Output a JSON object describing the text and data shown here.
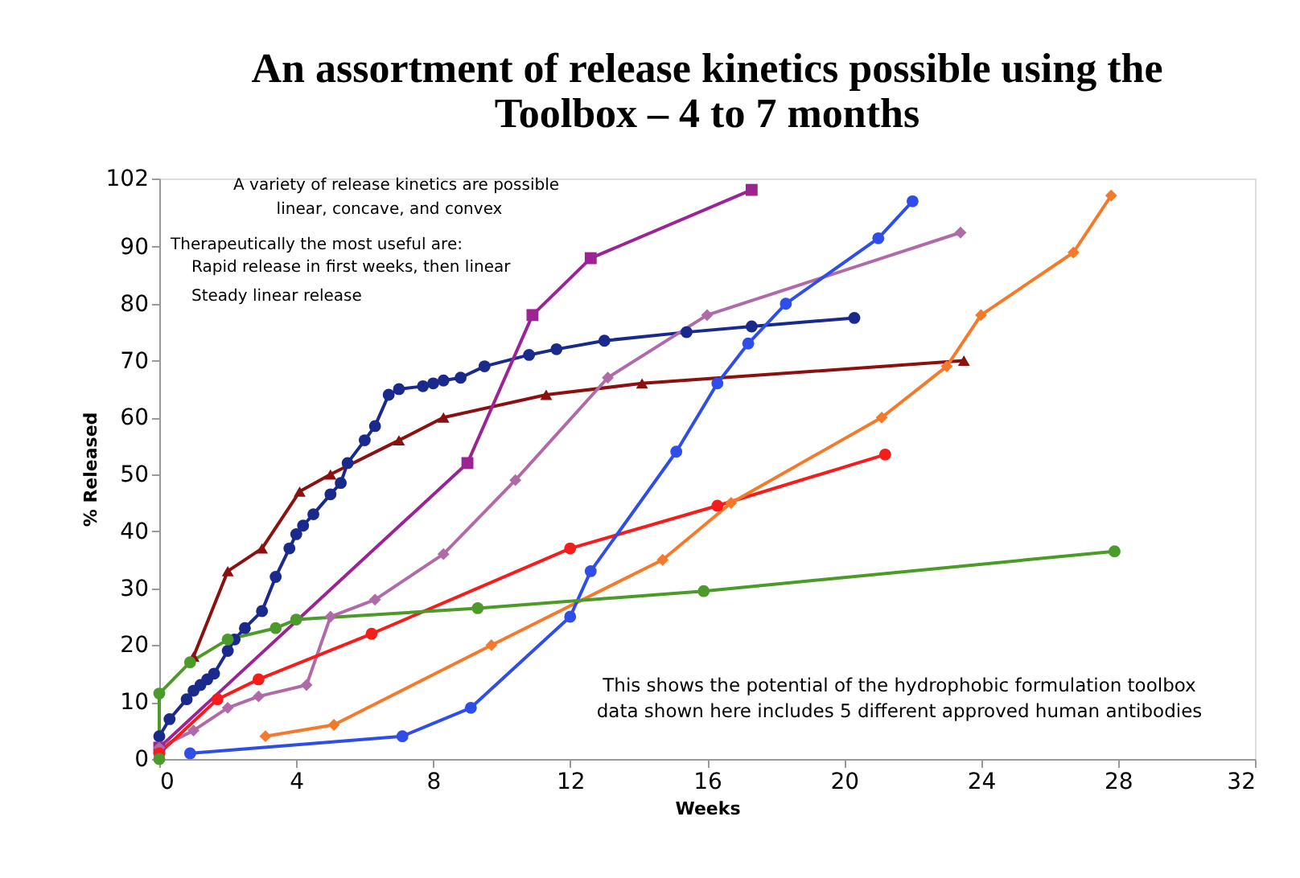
{
  "chart_data": {
    "type": "line",
    "title": [
      "An assortment of release kinetics possible using the",
      "Toolbox – 4 to 7 months"
    ],
    "xlabel": "Weeks",
    "ylabel": "% Released",
    "xlim": [
      0,
      32
    ],
    "xticks": [
      0,
      4,
      8,
      12,
      16,
      20,
      24,
      28,
      32
    ],
    "ylim": [
      0,
      102
    ],
    "yticks": [
      0,
      10,
      20,
      30,
      40,
      50,
      60,
      70,
      80,
      90,
      102
    ],
    "grid": false,
    "legend": false,
    "annotations": [
      "A variety of release kinetics are possible",
      "linear, concave, and convex",
      "Therapeutically the most useful are:",
      "Rapid release in first weeks, then linear",
      "Steady linear release",
      "This shows the potential of the hydrophobic formulation toolbox",
      "data shown here includes 5 different approved human antibodies"
    ],
    "series": [
      {
        "color": "#1a2a8c",
        "marker": "circle",
        "x": [
          0,
          0.3,
          0.8,
          1,
          1.2,
          1.4,
          1.6,
          2,
          2.2,
          2.5,
          3,
          3.4,
          3.8,
          4,
          4.2,
          4.5,
          5,
          5.3,
          5.5,
          6,
          6.3,
          6.7,
          7,
          7.7,
          8,
          8.3,
          8.8,
          9.5,
          10.8,
          11.6,
          13,
          15.4,
          17.3,
          20.3
        ],
        "values": [
          4,
          7,
          10.5,
          12,
          13,
          14,
          15,
          19,
          21,
          23,
          26,
          32,
          37,
          39.5,
          41,
          43,
          46.5,
          48.5,
          52,
          56,
          58.5,
          64,
          65,
          65.5,
          66,
          66.5,
          67,
          69,
          71,
          72,
          73.5,
          75,
          76,
          77.5
        ]
      },
      {
        "color": "#8b1010",
        "marker": "triangle",
        "x": [
          1,
          2,
          3,
          4.1,
          5,
          7,
          8.3,
          11.3,
          14.1,
          23.5
        ],
        "values": [
          18,
          33,
          37,
          47,
          50,
          56,
          60,
          64,
          66,
          70
        ]
      },
      {
        "color": "#9b2394",
        "marker": "square",
        "x": [
          0,
          9,
          10.9,
          12.6,
          17.3
        ],
        "values": [
          2,
          52,
          78,
          88,
          100
        ]
      },
      {
        "color": "#b06aa8",
        "marker": "diamond",
        "x": [
          0,
          1,
          2,
          2.9,
          4.3,
          5,
          6.3,
          8.3,
          10.4,
          13.1,
          16,
          23.4
        ],
        "values": [
          2,
          5,
          9,
          11,
          13,
          25,
          28,
          36,
          49,
          67,
          78,
          92.5
        ]
      },
      {
        "color": "#f51c1c",
        "marker": "circle",
        "x": [
          0,
          1.7,
          2.9,
          6.2,
          12,
          16.3,
          21.2
        ],
        "values": [
          1,
          10.5,
          14,
          22,
          37,
          44.5,
          53.5
        ]
      },
      {
        "color": "#f5792a",
        "marker": "diamond",
        "x": [
          3.1,
          5.1,
          9.7,
          14.7,
          16.7,
          21.1,
          23,
          24,
          26.7,
          27.8
        ],
        "values": [
          4,
          6,
          20,
          35,
          45,
          60,
          69,
          78,
          89,
          99
        ]
      },
      {
        "color": "#2f4de8",
        "marker": "circle",
        "x": [
          0.9,
          7.1,
          9.1,
          12,
          12.6,
          15.1,
          16.3,
          17.2,
          18.3,
          21,
          22
        ],
        "values": [
          1,
          4,
          9,
          25,
          33,
          54,
          66,
          73,
          80,
          91.5,
          98
        ]
      },
      {
        "color": "#4c9a2a",
        "marker": "circle",
        "x": [
          0,
          0,
          0.9,
          2,
          3.4,
          4,
          9.3,
          15.9,
          27.9
        ],
        "values": [
          0,
          11.5,
          17,
          21,
          23,
          24.5,
          26.5,
          29.5,
          36.5
        ]
      }
    ]
  }
}
